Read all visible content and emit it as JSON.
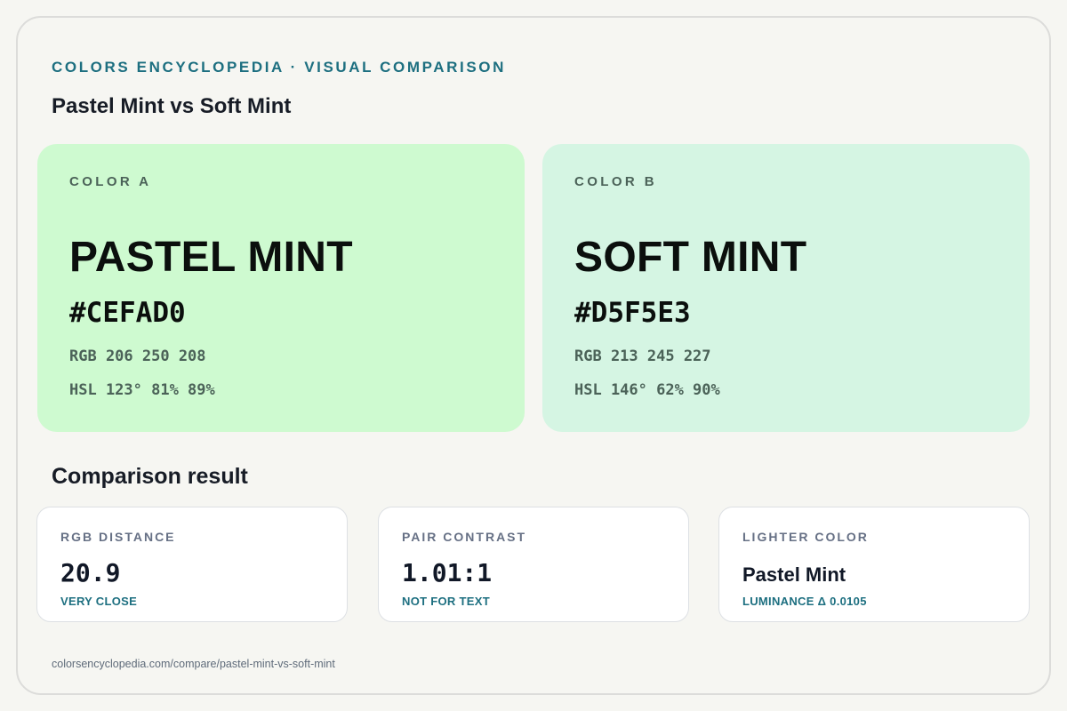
{
  "header": {
    "eyebrow": "COLORS ENCYCLOPEDIA · VISUAL COMPARISON",
    "title": "Pastel Mint vs Soft Mint"
  },
  "colors": [
    {
      "tag": "COLOR A",
      "name": "PASTEL MINT",
      "hex": "#CEFAD0",
      "rgb": "RGB 206 250 208",
      "hsl": "HSL 123° 81% 89%",
      "swatch": "#cefad0"
    },
    {
      "tag": "COLOR B",
      "name": "SOFT MINT",
      "hex": "#D5F5E3",
      "rgb": "RGB 213 245 227",
      "hsl": "HSL 146° 62% 90%",
      "swatch": "#d5f5e3"
    }
  ],
  "comparison": {
    "title": "Comparison result",
    "stats": [
      {
        "label": "RGB DISTANCE",
        "value": "20.9",
        "note": "VERY CLOSE"
      },
      {
        "label": "PAIR CONTRAST",
        "value": "1.01:1",
        "note": "NOT FOR TEXT"
      },
      {
        "label": "LIGHTER COLOR",
        "value": "Pastel Mint",
        "note": "LUMINANCE Δ 0.0105"
      }
    ]
  },
  "footer": {
    "url": "colorsencyclopedia.com/compare/pastel-mint-vs-soft-mint"
  },
  "theme": {
    "accent": "#1d6f80",
    "page_background": "#f6f6f2"
  }
}
